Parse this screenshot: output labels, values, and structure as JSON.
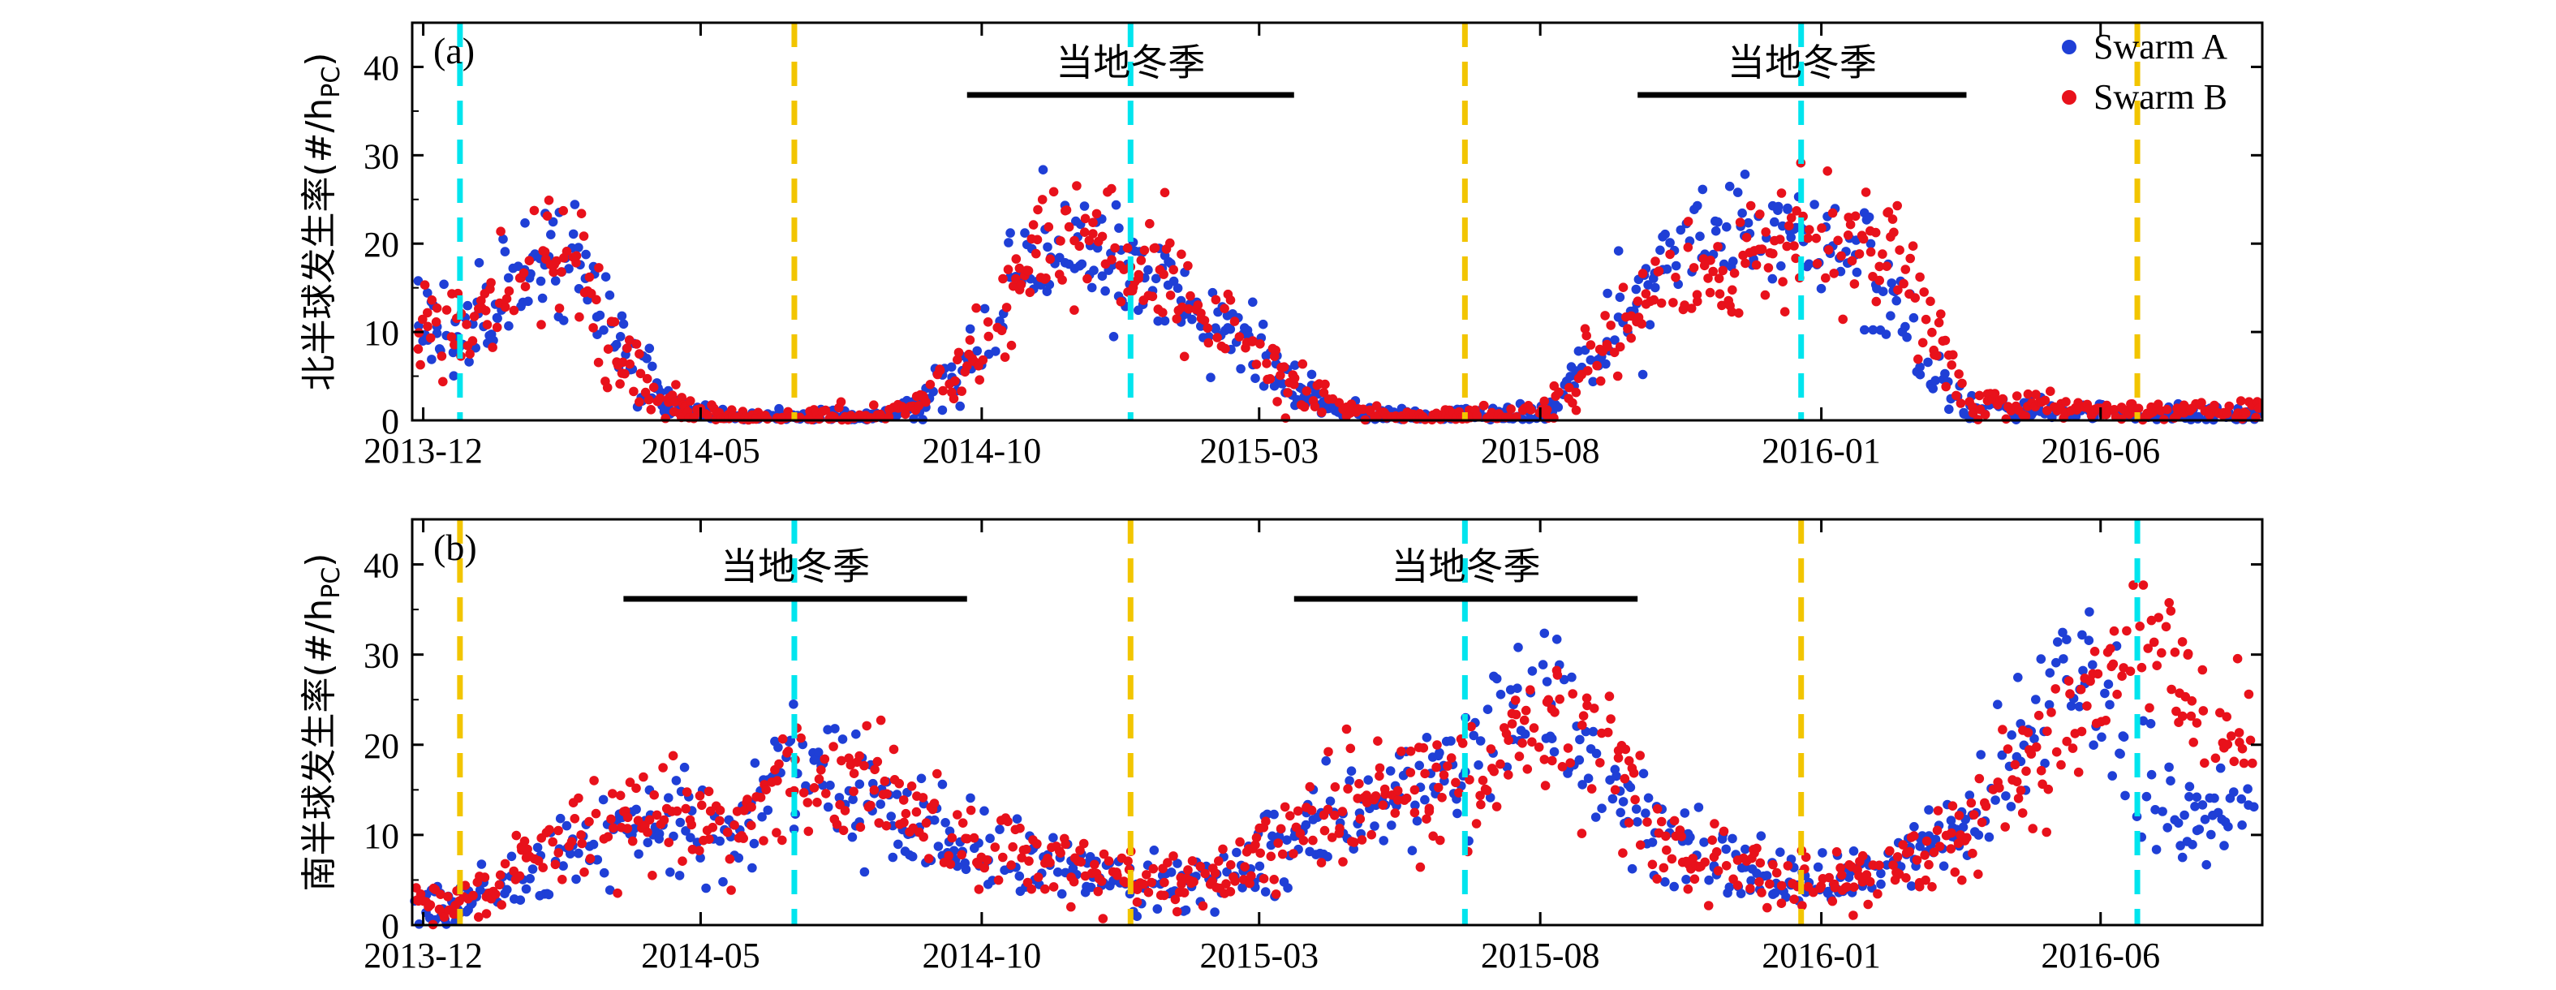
{
  "colors": {
    "swarm_a": "#1f3fd6",
    "swarm_b": "#e8111b",
    "winter_marker": "#00e5ee",
    "equinox_marker": "#f2c500",
    "season_bar": "#000000"
  },
  "chart_data": [
    {
      "type": "scatter",
      "panel_label": "(a)",
      "ylabel": "北半球发生率(#/h_PC)",
      "ylabel_main": "北半球发生率(#/h",
      "ylabel_sub": "PC",
      "ylabel_close": ")",
      "ylim": [
        0,
        45
      ],
      "yticks": [
        0,
        10,
        20,
        30,
        40
      ],
      "xlim": [
        "2013-11-25",
        "2016-08-28"
      ],
      "xticks": [
        "2013-12-01",
        "2014-05-01",
        "2014-10-01",
        "2015-03-01",
        "2015-08-01",
        "2016-01-01",
        "2016-06-01"
      ],
      "xtick_labels": [
        "2013-12",
        "2014-05",
        "2014-10",
        "2015-03",
        "2015-08",
        "2016-01",
        "2016-06"
      ],
      "legend": [
        "Swarm A",
        "Swarm B"
      ],
      "legend_position": "top-right",
      "season_label": "当地冬季",
      "winter_periods": [
        {
          "start": "2014-09-23",
          "end": "2015-03-20",
          "label": "当地冬季"
        },
        {
          "start": "2015-09-23",
          "end": "2016-03-20",
          "label": "当地冬季"
        }
      ],
      "solstice_lines": [
        "2013-12-21",
        "2014-12-21",
        "2015-12-21"
      ],
      "other_solstice_lines": [
        "2014-06-21",
        "2015-06-21",
        "2016-06-21"
      ],
      "series": [
        {
          "name": "Swarm A",
          "profile": [
            [
              "2013-12-01",
              12
            ],
            [
              "2013-12-20",
              9
            ],
            [
              "2014-01-15",
              14
            ],
            [
              "2014-02-01",
              18
            ],
            [
              "2014-02-20",
              19
            ],
            [
              "2014-03-10",
              12
            ],
            [
              "2014-03-25",
              6
            ],
            [
              "2014-04-15",
              2
            ],
            [
              "2014-05-05",
              0.5
            ],
            [
              "2014-05-20",
              0.2
            ],
            [
              "2014-08-01",
              0.2
            ],
            [
              "2014-08-25",
              1.5
            ],
            [
              "2014-09-10",
              4
            ],
            [
              "2014-10-01",
              8
            ],
            [
              "2014-10-20",
              17
            ],
            [
              "2014-11-10",
              20
            ],
            [
              "2014-12-05",
              19
            ],
            [
              "2014-12-25",
              15
            ],
            [
              "2015-01-15",
              14
            ],
            [
              "2015-02-10",
              10
            ],
            [
              "2015-03-01",
              8
            ],
            [
              "2015-03-20",
              4
            ],
            [
              "2015-04-10",
              1.5
            ],
            [
              "2015-05-01",
              0.5
            ],
            [
              "2015-07-10",
              0.3
            ],
            [
              "2015-08-01",
              1
            ],
            [
              "2015-08-20",
              4
            ],
            [
              "2015-09-05",
              9
            ],
            [
              "2015-09-25",
              14
            ],
            [
              "2015-10-20",
              20
            ],
            [
              "2015-11-10",
              21
            ],
            [
              "2015-12-10",
              22
            ],
            [
              "2016-01-05",
              19
            ],
            [
              "2016-01-25",
              16
            ],
            [
              "2016-02-15",
              11
            ],
            [
              "2016-03-01",
              5
            ],
            [
              "2016-03-20",
              2
            ],
            [
              "2016-04-15",
              1.2
            ],
            [
              "2016-06-15",
              0.8
            ],
            [
              "2016-08-20",
              0.6
            ]
          ],
          "spread": 3.2,
          "seed": 11
        },
        {
          "name": "Swarm B",
          "profile": [
            [
              "2013-12-01",
              11
            ],
            [
              "2013-12-20",
              9
            ],
            [
              "2014-01-15",
              14
            ],
            [
              "2014-02-01",
              17
            ],
            [
              "2014-02-20",
              17
            ],
            [
              "2014-03-10",
              11
            ],
            [
              "2014-03-25",
              5
            ],
            [
              "2014-04-15",
              2
            ],
            [
              "2014-05-05",
              0.5
            ],
            [
              "2014-05-20",
              0.2
            ],
            [
              "2014-08-01",
              0.2
            ],
            [
              "2014-08-25",
              1.5
            ],
            [
              "2014-09-10",
              4
            ],
            [
              "2014-10-01",
              8
            ],
            [
              "2014-10-20",
              17
            ],
            [
              "2014-11-10",
              21
            ],
            [
              "2014-12-05",
              20
            ],
            [
              "2014-12-25",
              17
            ],
            [
              "2015-01-15",
              14
            ],
            [
              "2015-02-10",
              11
            ],
            [
              "2015-03-01",
              8
            ],
            [
              "2015-03-20",
              4
            ],
            [
              "2015-04-10",
              1.5
            ],
            [
              "2015-05-01",
              0.5
            ],
            [
              "2015-07-10",
              0.3
            ],
            [
              "2015-08-01",
              1
            ],
            [
              "2015-08-20",
              4
            ],
            [
              "2015-09-05",
              9
            ],
            [
              "2015-09-25",
              13
            ],
            [
              "2015-10-20",
              16
            ],
            [
              "2015-11-10",
              17
            ],
            [
              "2015-12-10",
              19
            ],
            [
              "2016-01-05",
              21
            ],
            [
              "2016-01-25",
              21
            ],
            [
              "2016-02-15",
              18
            ],
            [
              "2016-03-01",
              9
            ],
            [
              "2016-03-20",
              3
            ],
            [
              "2016-04-15",
              1.5
            ],
            [
              "2016-06-15",
              1
            ],
            [
              "2016-08-20",
              1
            ]
          ],
          "spread": 3.2,
          "seed": 23
        }
      ]
    },
    {
      "type": "scatter",
      "panel_label": "(b)",
      "ylabel": "南半球发生率(#/h_PC)",
      "ylabel_main": "南半球发生率(#/h",
      "ylabel_sub": "PC",
      "ylabel_close": ")",
      "ylim": [
        0,
        45
      ],
      "yticks": [
        0,
        10,
        20,
        30,
        40
      ],
      "xlim": [
        "2013-11-25",
        "2016-08-28"
      ],
      "xticks": [
        "2013-12-01",
        "2014-05-01",
        "2014-10-01",
        "2015-03-01",
        "2015-08-01",
        "2016-01-01",
        "2016-06-01"
      ],
      "xtick_labels": [
        "2013-12",
        "2014-05",
        "2014-10",
        "2015-03",
        "2015-08",
        "2016-01",
        "2016-06"
      ],
      "season_label": "当地冬季",
      "winter_periods": [
        {
          "start": "2014-03-20",
          "end": "2014-09-23",
          "label": "当地冬季"
        },
        {
          "start": "2015-03-20",
          "end": "2015-09-23",
          "label": "当地冬季"
        }
      ],
      "solstice_lines": [
        "2014-06-21",
        "2015-06-21",
        "2016-06-21"
      ],
      "other_solstice_lines": [
        "2013-12-21",
        "2014-12-21",
        "2015-12-21"
      ],
      "series": [
        {
          "name": "Swarm A",
          "profile": [
            [
              "2013-12-01",
              2
            ],
            [
              "2013-12-25",
              3
            ],
            [
              "2014-01-20",
              5
            ],
            [
              "2014-02-20",
              8
            ],
            [
              "2014-03-20",
              11
            ],
            [
              "2014-04-15",
              12
            ],
            [
              "2014-05-10",
              10
            ],
            [
              "2014-05-25",
              9
            ],
            [
              "2014-06-15",
              19
            ],
            [
              "2014-07-15",
              17
            ],
            [
              "2014-08-15",
              13
            ],
            [
              "2014-09-15",
              9
            ],
            [
              "2014-10-15",
              8
            ],
            [
              "2014-11-15",
              7
            ],
            [
              "2014-12-15",
              5
            ],
            [
              "2015-01-15",
              4
            ],
            [
              "2015-02-15",
              6
            ],
            [
              "2015-03-15",
              9
            ],
            [
              "2015-04-15",
              12
            ],
            [
              "2015-05-15",
              14
            ],
            [
              "2015-06-15",
              17
            ],
            [
              "2015-07-10",
              22
            ],
            [
              "2015-08-01",
              26
            ],
            [
              "2015-08-25",
              20
            ],
            [
              "2015-09-15",
              14
            ],
            [
              "2015-10-15",
              9
            ],
            [
              "2015-11-15",
              6
            ],
            [
              "2015-12-15",
              4
            ],
            [
              "2016-01-15",
              5
            ],
            [
              "2016-02-15",
              7
            ],
            [
              "2016-03-15",
              10
            ],
            [
              "2016-04-10",
              16
            ],
            [
              "2016-05-01",
              23
            ],
            [
              "2016-05-25",
              27
            ],
            [
              "2016-06-15",
              18
            ],
            [
              "2016-07-10",
              13
            ],
            [
              "2016-08-20",
              11
            ]
          ],
          "spread": 3.8,
          "seed": 37
        },
        {
          "name": "Swarm B",
          "profile": [
            [
              "2013-12-01",
              2
            ],
            [
              "2013-12-25",
              3
            ],
            [
              "2014-01-20",
              6
            ],
            [
              "2014-02-20",
              10
            ],
            [
              "2014-03-20",
              12
            ],
            [
              "2014-04-15",
              13
            ],
            [
              "2014-05-10",
              11
            ],
            [
              "2014-05-25",
              10
            ],
            [
              "2014-06-15",
              16
            ],
            [
              "2014-07-15",
              16
            ],
            [
              "2014-08-15",
              14
            ],
            [
              "2014-09-15",
              9
            ],
            [
              "2014-10-15",
              8
            ],
            [
              "2014-11-15",
              7
            ],
            [
              "2014-12-15",
              5
            ],
            [
              "2015-01-15",
              4
            ],
            [
              "2015-02-15",
              6
            ],
            [
              "2015-03-15",
              10
            ],
            [
              "2015-04-15",
              13
            ],
            [
              "2015-05-15",
              15
            ],
            [
              "2015-06-15",
              16
            ],
            [
              "2015-07-10",
              19
            ],
            [
              "2015-08-01",
              22
            ],
            [
              "2015-08-25",
              21
            ],
            [
              "2015-09-15",
              17
            ],
            [
              "2015-10-15",
              9
            ],
            [
              "2015-11-15",
              6
            ],
            [
              "2015-12-15",
              4
            ],
            [
              "2016-01-15",
              5
            ],
            [
              "2016-02-15",
              7
            ],
            [
              "2016-03-15",
              9
            ],
            [
              "2016-04-10",
              14
            ],
            [
              "2016-05-01",
              19
            ],
            [
              "2016-05-25",
              25
            ],
            [
              "2016-06-15",
              32
            ],
            [
              "2016-07-10",
              28
            ],
            [
              "2016-08-20",
              20
            ]
          ],
          "spread": 4.0,
          "seed": 53
        }
      ]
    }
  ]
}
